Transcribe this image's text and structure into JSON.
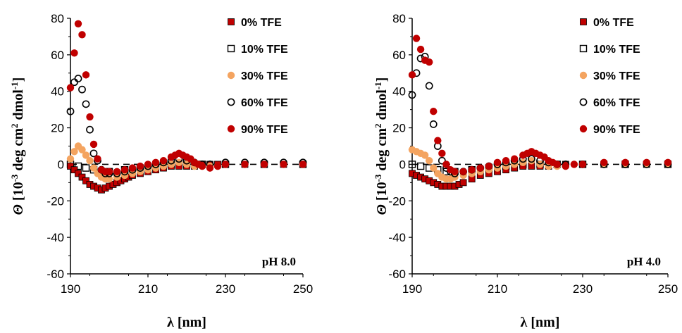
{
  "chart_data": [
    {
      "type": "scatter",
      "annotation": "pH 8.0",
      "xlabel": "λ [nm]",
      "ylabel": "Θ [10-3 deg cm2 dmol-1]",
      "xlim": [
        190,
        250
      ],
      "ylim": [
        -60,
        80
      ],
      "xticks": [
        190,
        210,
        230,
        250
      ],
      "yticks": [
        -60,
        -40,
        -20,
        0,
        20,
        40,
        60,
        80
      ],
      "grid": false,
      "legend_position": "top-right",
      "series": [
        {
          "name": "0% TFE",
          "marker": "square-filled",
          "color": "#c00000",
          "x": [
            190,
            191,
            192,
            193,
            194,
            195,
            196,
            197,
            198,
            199,
            200,
            201,
            202,
            203,
            204,
            205,
            206,
            208,
            210,
            212,
            214,
            216,
            218,
            220,
            222,
            224,
            226,
            228,
            230,
            235,
            240,
            245,
            250
          ],
          "y": [
            -1,
            -3,
            -5,
            -7,
            -9,
            -11,
            -12,
            -13,
            -14,
            -13,
            -12,
            -11,
            -10,
            -9,
            -8,
            -7,
            -6,
            -5,
            -4,
            -3,
            -2,
            -1,
            -1,
            -1,
            -1,
            0,
            0,
            0,
            0,
            0,
            0,
            0,
            0
          ]
        },
        {
          "name": "10% TFE",
          "marker": "square-open",
          "color": "#000000",
          "x": [
            190,
            192,
            194,
            196,
            198,
            200,
            204,
            208,
            212,
            216,
            220,
            224,
            230,
            240,
            250
          ],
          "y": [
            0,
            -1,
            -2,
            -3,
            -4,
            -4,
            -3,
            -2,
            -1,
            0,
            0,
            0,
            0,
            0,
            0
          ]
        },
        {
          "name": "30% TFE",
          "marker": "circle-filled",
          "color": "#f4a460",
          "x": [
            190,
            191,
            192,
            193,
            194,
            195,
            196,
            197,
            198,
            199,
            200,
            202,
            204,
            206,
            208,
            210,
            212,
            214,
            216,
            218,
            220,
            222,
            224,
            226,
            228,
            230,
            235,
            240,
            245,
            250
          ],
          "y": [
            3,
            7,
            10,
            8,
            5,
            2,
            -2,
            -5,
            -7,
            -8,
            -8,
            -7,
            -6,
            -5,
            -4,
            -3,
            -2,
            -1,
            0,
            1,
            0,
            -1,
            -1,
            -1,
            -1,
            0,
            0,
            0,
            0,
            0
          ]
        },
        {
          "name": "60% TFE",
          "marker": "circle-open",
          "color": "#000000",
          "x": [
            190,
            191,
            192,
            193,
            194,
            195,
            196,
            197,
            198,
            199,
            200,
            202,
            204,
            206,
            208,
            210,
            212,
            214,
            216,
            218,
            220,
            222,
            224,
            226,
            230,
            235,
            240,
            245,
            250
          ],
          "y": [
            29,
            45,
            47,
            41,
            33,
            19,
            6,
            2,
            -3,
            -5,
            -5,
            -5,
            -4,
            -3,
            -2,
            -1,
            0,
            1,
            2,
            3,
            2,
            1,
            0,
            0,
            1,
            1,
            1,
            1,
            1
          ]
        },
        {
          "name": "90% TFE",
          "marker": "circle-filled",
          "color": "#c00000",
          "x": [
            190,
            191,
            192,
            193,
            194,
            195,
            196,
            197,
            198,
            199,
            200,
            202,
            204,
            206,
            208,
            210,
            212,
            214,
            216,
            217,
            218,
            219,
            220,
            221,
            222,
            223,
            224,
            226,
            228,
            230,
            235,
            240,
            245,
            250
          ],
          "y": [
            42,
            61,
            77,
            71,
            49,
            26,
            11,
            3,
            -3,
            -4,
            -4,
            -4,
            -3,
            -2,
            -1,
            0,
            1,
            2,
            4,
            5,
            6,
            5,
            4,
            3,
            1,
            0,
            -1,
            -2,
            -1,
            0,
            0,
            0,
            0,
            0
          ]
        }
      ]
    },
    {
      "type": "scatter",
      "annotation": "pH 4.0",
      "xlabel": "λ [nm]",
      "ylabel": "Θ [10-3 deg cm2 dmol-1]",
      "xlim": [
        190,
        250
      ],
      "ylim": [
        -60,
        80
      ],
      "xticks": [
        190,
        210,
        230,
        250
      ],
      "yticks": [
        -60,
        -40,
        -20,
        0,
        20,
        40,
        60,
        80
      ],
      "grid": false,
      "legend_position": "top-right",
      "series": [
        {
          "name": "0% TFE",
          "marker": "square-filled",
          "color": "#c00000",
          "x": [
            190,
            191,
            192,
            193,
            194,
            195,
            196,
            197,
            198,
            199,
            200,
            201,
            202,
            204,
            206,
            208,
            210,
            212,
            214,
            216,
            218,
            220,
            222,
            224,
            226,
            230,
            235,
            240,
            245,
            250
          ],
          "y": [
            -5,
            -6,
            -7,
            -8,
            -9,
            -10,
            -11,
            -12,
            -12,
            -12,
            -12,
            -11,
            -10,
            -8,
            -6,
            -5,
            -4,
            -3,
            -2,
            -1,
            -1,
            -1,
            -1,
            0,
            0,
            0,
            0,
            0,
            0,
            0
          ]
        },
        {
          "name": "10% TFE",
          "marker": "square-open",
          "color": "#000000",
          "x": [
            190,
            192,
            194,
            196,
            198,
            200,
            204,
            208,
            212,
            216,
            220,
            224,
            230,
            240,
            250
          ],
          "y": [
            0,
            -1,
            -2,
            -3,
            -4,
            -4,
            -3,
            -2,
            -1,
            0,
            0,
            0,
            0,
            0,
            0
          ]
        },
        {
          "name": "30% TFE",
          "marker": "circle-filled",
          "color": "#f4a460",
          "x": [
            190,
            191,
            192,
            193,
            194,
            195,
            196,
            197,
            198,
            199,
            200,
            202,
            204,
            206,
            208,
            210,
            212,
            214,
            216,
            218,
            220,
            222,
            224,
            226,
            228,
            230,
            235,
            240,
            245,
            250
          ],
          "y": [
            8,
            7,
            6,
            5,
            2,
            -2,
            -5,
            -7,
            -8,
            -8,
            -7,
            -6,
            -5,
            -4,
            -3,
            -2,
            -1,
            0,
            1,
            2,
            0,
            -1,
            -1,
            -1,
            0,
            0,
            0,
            0,
            0,
            0
          ]
        },
        {
          "name": "60% TFE",
          "marker": "circle-open",
          "color": "#000000",
          "x": [
            190,
            191,
            192,
            193,
            194,
            195,
            196,
            197,
            198,
            199,
            200,
            202,
            204,
            206,
            208,
            210,
            212,
            214,
            216,
            218,
            220,
            222,
            224,
            226,
            230,
            235,
            240,
            245,
            250
          ],
          "y": [
            38,
            50,
            58,
            59,
            43,
            22,
            10,
            2,
            -2,
            -4,
            -5,
            -4,
            -3,
            -2,
            -1,
            0,
            1,
            2,
            3,
            3,
            2,
            1,
            0,
            0,
            0,
            0,
            0,
            0,
            0
          ]
        },
        {
          "name": "90% TFE",
          "marker": "circle-filled",
          "color": "#c00000",
          "x": [
            190,
            191,
            192,
            193,
            194,
            195,
            196,
            197,
            198,
            199,
            200,
            202,
            204,
            206,
            208,
            210,
            212,
            214,
            216,
            217,
            218,
            219,
            220,
            221,
            222,
            223,
            224,
            226,
            228,
            230,
            235,
            240,
            245,
            250
          ],
          "y": [
            49,
            69,
            63,
            57,
            56,
            29,
            13,
            6,
            0,
            -3,
            -4,
            -4,
            -3,
            -2,
            -1,
            1,
            2,
            3,
            5,
            6,
            7,
            6,
            5,
            4,
            2,
            1,
            0,
            -1,
            0,
            0,
            1,
            1,
            1,
            1
          ]
        }
      ]
    }
  ]
}
